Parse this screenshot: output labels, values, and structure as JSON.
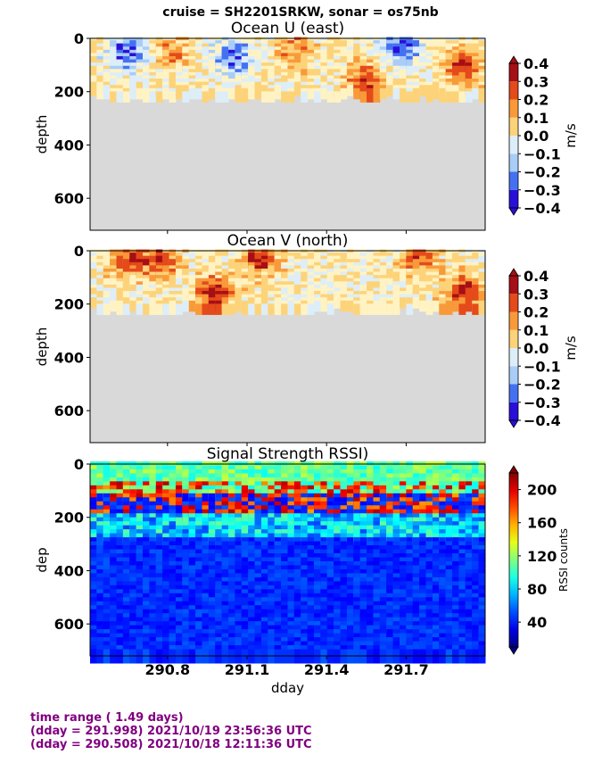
{
  "suptitle": "cruise = SH2201SRKW,  sonar = os75nb",
  "colors": {
    "land_gray": "#d9d9d9",
    "footer_purple": "#800080"
  },
  "footer": {
    "line1": "time range ( 1.49 days)",
    "line2": "(dday = 291.998) 2021/10/19 23:56:36 UTC",
    "line3": "(dday = 290.508) 2021/10/18 12:11:36 UTC"
  },
  "chart_data": [
    {
      "type": "heatmap",
      "title": "Ocean U (east)",
      "ylabel": "depth",
      "xlabel": "",
      "xlim": [
        290.508,
        291.998
      ],
      "ylim": [
        720,
        0
      ],
      "yticks": [
        "0",
        "200",
        "400",
        "600"
      ],
      "ytick_values": [
        0,
        200,
        400,
        600
      ],
      "colorbar": {
        "label": "m/s",
        "ticks": [
          "0.4",
          "0.3",
          "0.2",
          "0.1",
          "0.0",
          "−0.1",
          "−0.2",
          "−0.3",
          "−0.4"
        ],
        "levels": [
          -0.4,
          -0.3,
          -0.2,
          -0.1,
          0.0,
          0.1,
          0.2,
          0.3,
          0.4
        ],
        "palette": [
          "#2a0fd9",
          "#4471f2",
          "#a9cdf7",
          "#ddeef9",
          "#fff3c4",
          "#fdd37a",
          "#f99a3a",
          "#e44a1a",
          "#a50f15"
        ],
        "extend": "both"
      },
      "bottom_depth_m": 220,
      "features": [
        {
          "dday": 290.65,
          "depth_m": 60,
          "value": -0.35
        },
        {
          "dday": 290.82,
          "depth_m": 70,
          "value": 0.2
        },
        {
          "dday": 291.05,
          "depth_m": 80,
          "value": -0.3
        },
        {
          "dday": 291.28,
          "depth_m": 60,
          "value": 0.25
        },
        {
          "dday": 291.55,
          "depth_m": 180,
          "value": 0.35
        },
        {
          "dday": 291.68,
          "depth_m": 50,
          "value": -0.35
        },
        {
          "dday": 291.92,
          "depth_m": 120,
          "value": 0.35
        }
      ]
    },
    {
      "type": "heatmap",
      "title": "Ocean V (north)",
      "ylabel": "depth",
      "xlabel": "",
      "xlim": [
        290.508,
        291.998
      ],
      "ylim": [
        720,
        0
      ],
      "yticks": [
        "0",
        "200",
        "400",
        "600"
      ],
      "ytick_values": [
        0,
        200,
        400,
        600
      ],
      "colorbar": {
        "label": "m/s",
        "ticks": [
          "0.4",
          "0.3",
          "0.2",
          "0.1",
          "0.0",
          "−0.1",
          "−0.2",
          "−0.3",
          "−0.4"
        ],
        "levels": [
          -0.4,
          -0.3,
          -0.2,
          -0.1,
          0.0,
          0.1,
          0.2,
          0.3,
          0.4
        ],
        "palette": [
          "#2a0fd9",
          "#4471f2",
          "#a9cdf7",
          "#ddeef9",
          "#fff3c4",
          "#fdd37a",
          "#f99a3a",
          "#e44a1a",
          "#a50f15"
        ],
        "extend": "both"
      },
      "bottom_depth_m": 220,
      "features": [
        {
          "dday": 290.65,
          "depth_m": 40,
          "value": 0.35
        },
        {
          "dday": 290.78,
          "depth_m": 50,
          "value": 0.3
        },
        {
          "dday": 290.98,
          "depth_m": 180,
          "value": 0.4
        },
        {
          "dday": 291.15,
          "depth_m": 40,
          "value": 0.35
        },
        {
          "dday": 291.75,
          "depth_m": 40,
          "value": 0.3
        },
        {
          "dday": 291.92,
          "depth_m": 170,
          "value": 0.4
        }
      ]
    },
    {
      "type": "heatmap",
      "title": "Signal Strength RSSI)",
      "ylabel": "dep",
      "xlabel": "dday",
      "xlim": [
        290.508,
        291.998
      ],
      "ylim": [
        720,
        0
      ],
      "yticks": [
        "0",
        "200",
        "400",
        "600"
      ],
      "ytick_values": [
        0,
        200,
        400,
        600
      ],
      "xticks": [
        "290.8",
        "291.1",
        "291.4",
        "291.7"
      ],
      "xtick_values": [
        290.8,
        291.1,
        291.4,
        291.7
      ],
      "colorbar": {
        "label": "RSSI counts",
        "ticks": [
          "200",
          "160",
          "120",
          "80",
          "40"
        ],
        "levels": [
          40,
          80,
          120,
          160,
          200
        ],
        "range": [
          10,
          220
        ],
        "colormap": "jet",
        "extend": "both"
      },
      "features": [
        {
          "depth_range_m": [
            30,
            120
          ],
          "rssi": 110
        },
        {
          "depth_range_m": [
            80,
            200
          ],
          "rssi": 200
        },
        {
          "depth_range_m": [
            300,
            720
          ],
          "rssi": 30
        }
      ]
    }
  ]
}
